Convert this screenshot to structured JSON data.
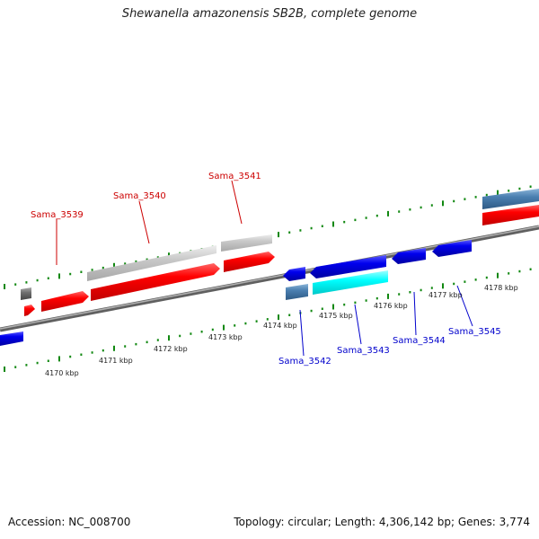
{
  "title": "Shewanella amazonensis SB2B, complete genome",
  "footer": {
    "accession": "Accession: NC_008700",
    "stats": "Topology: circular; Length: 4,306,142 bp; Genes: 3,774"
  },
  "colors": {
    "forward_gene": "#ff0000",
    "reverse_gene": "#0000ee",
    "forward_label": "#cc0000",
    "reverse_label": "#0000cc",
    "tick": "#118811",
    "backbone": "#808080",
    "grey_feature": "#c8c8c8",
    "steel_feature": "#4a7fb0",
    "cyan_feature": "#00ffff"
  },
  "scale_labels": [
    "4170 kbp",
    "4171 kbp",
    "4172 kbp",
    "4173 kbp",
    "4174 kbp",
    "4175 kbp",
    "4176 kbp",
    "4177 kbp",
    "4178 kbp"
  ],
  "gene_labels": [
    {
      "text": "Sama_3539",
      "strand": "forward"
    },
    {
      "text": "Sama_3540",
      "strand": "forward"
    },
    {
      "text": "Sama_3541",
      "strand": "forward"
    },
    {
      "text": "Sama_3542",
      "strand": "reverse"
    },
    {
      "text": "Sama_3543",
      "strand": "reverse"
    },
    {
      "text": "Sama_3544",
      "strand": "reverse"
    },
    {
      "text": "Sama_3545",
      "strand": "reverse"
    }
  ]
}
